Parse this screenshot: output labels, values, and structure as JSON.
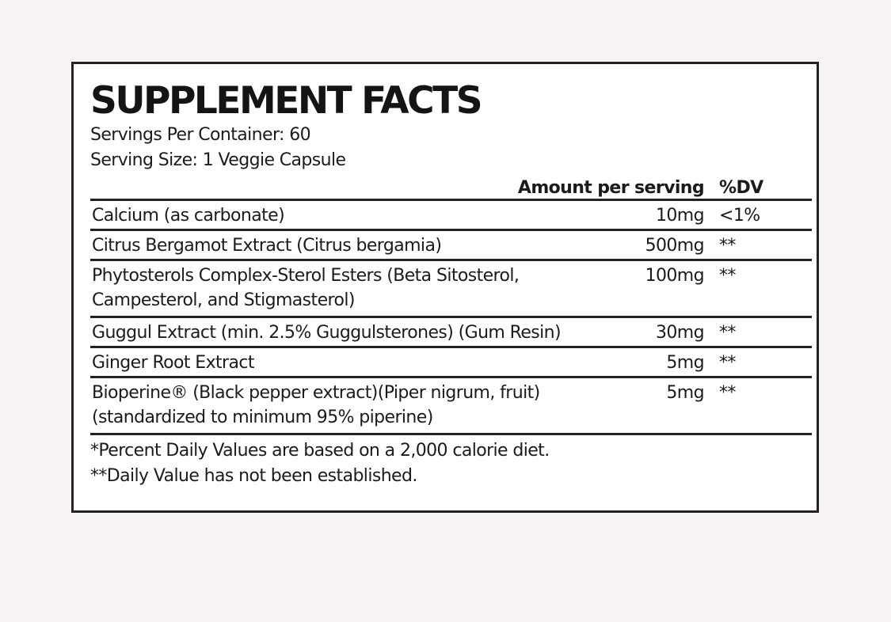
{
  "label": {
    "title": "SUPPLEMENT FACTS",
    "servings_per_container": "Servings Per Container: 60",
    "serving_size": "Serving Size: 1 Veggie Capsule",
    "header": {
      "amount": "Amount per serving",
      "dv": "%DV"
    },
    "rows": [
      {
        "name_lines": [
          "Calcium (as carbonate)"
        ],
        "amount": "10mg",
        "dv": "<1%"
      },
      {
        "name_lines": [
          "Citrus Bergamot Extract (Citrus bergamia)"
        ],
        "amount": "500mg",
        "dv": "**"
      },
      {
        "name_lines": [
          "Phytosterols Complex-Sterol Esters (Beta Sitosterol,",
          "Campesterol, and Stigmasterol)"
        ],
        "amount": "100mg",
        "dv": "**"
      },
      {
        "name_lines": [
          "Guggul Extract (min. 2.5% Guggulsterones) (Gum Resin)"
        ],
        "amount": "30mg",
        "dv": "**"
      },
      {
        "name_lines": [
          "Ginger Root Extract"
        ],
        "amount": "5mg",
        "dv": "**"
      },
      {
        "name_lines": [
          "Bioperine® (Black pepper extract)(Piper nigrum, fruit)",
          "(standardized to minimum 95% piperine)"
        ],
        "amount": "5mg",
        "dv": "**"
      }
    ],
    "footnotes": [
      "*Percent Daily Values are based on a 2,000 calorie diet.",
      "**Daily Value has not been established."
    ]
  },
  "colors": {
    "background": "#f8f3f4",
    "panel": "#ffffff",
    "rule": "#222222",
    "text": "#1b1b1b"
  }
}
